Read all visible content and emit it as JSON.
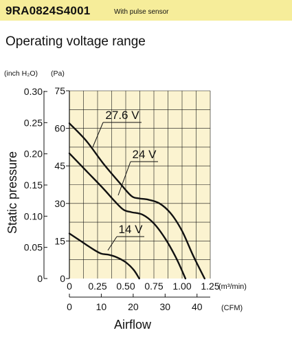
{
  "header": {
    "model": "9RA0824S4001",
    "subtitle": "With pulse sensor"
  },
  "section_title": "Operating voltage range",
  "colors": {
    "header_bg": "#f6ed9a",
    "plot_bg": "#fbf3d0",
    "curve": "#111111",
    "grid": "#111111"
  },
  "chart_data": {
    "type": "line",
    "title": "",
    "ylabel": "Static pressure",
    "xlabel": "Airflow",
    "y_left_unit": "(inch H₂O)",
    "y_right_unit": "(Pa)",
    "x_top_unit": "(m³/min)",
    "x_bottom_unit": "(CFM)",
    "y_ticks_inch": [
      "0.30",
      "0.25",
      "0.20",
      "0.15",
      "0.10",
      "0.05",
      "0"
    ],
    "y_ticks_pa": [
      "75",
      "60",
      "45",
      "30",
      "15",
      "0"
    ],
    "x_ticks_m3": [
      "0",
      "0.25",
      "0.50",
      "0.75",
      "1.00",
      "1.25"
    ],
    "x_ticks_cfm": [
      "0",
      "10",
      "20",
      "30",
      "40"
    ],
    "xlim": [
      0,
      1.25
    ],
    "ylim": [
      0,
      75
    ],
    "grid": true,
    "series": [
      {
        "name": "27.6 V",
        "points": [
          [
            0,
            62
          ],
          [
            0.15,
            55
          ],
          [
            0.3,
            46
          ],
          [
            0.45,
            38
          ],
          [
            0.55,
            33
          ],
          [
            0.62,
            32
          ],
          [
            0.7,
            31.5
          ],
          [
            0.8,
            30
          ],
          [
            0.9,
            26
          ],
          [
            1.0,
            19
          ],
          [
            1.1,
            9
          ],
          [
            1.2,
            0
          ]
        ]
      },
      {
        "name": "24 V",
        "points": [
          [
            0,
            50
          ],
          [
            0.15,
            43
          ],
          [
            0.3,
            36
          ],
          [
            0.4,
            31
          ],
          [
            0.48,
            27.5
          ],
          [
            0.55,
            26.5
          ],
          [
            0.65,
            25.5
          ],
          [
            0.75,
            22
          ],
          [
            0.85,
            16
          ],
          [
            0.95,
            8
          ],
          [
            1.03,
            0
          ]
        ]
      },
      {
        "name": "14 V",
        "points": [
          [
            0,
            18
          ],
          [
            0.1,
            15
          ],
          [
            0.2,
            12
          ],
          [
            0.28,
            10
          ],
          [
            0.35,
            9.5
          ],
          [
            0.42,
            8.5
          ],
          [
            0.5,
            6.5
          ],
          [
            0.57,
            3.5
          ],
          [
            0.62,
            0
          ]
        ]
      }
    ],
    "labels": [
      "27.6 V",
      "24 V",
      "14 V"
    ]
  }
}
